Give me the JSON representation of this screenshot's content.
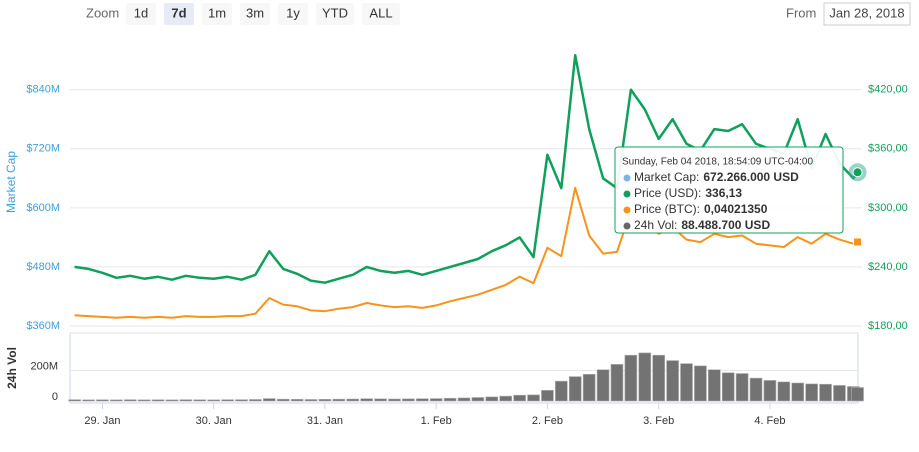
{
  "range_selector": {
    "label": "Zoom",
    "buttons": [
      "1d",
      "7d",
      "1m",
      "3m",
      "1y",
      "YTD",
      "ALL"
    ],
    "selected": 1,
    "from_label": "From",
    "from_value": "Jan 28, 2018"
  },
  "tooltip": {
    "title": "Sunday, Feb 04 2018, 18:54:09 UTC-04:00",
    "items": [
      {
        "name": "Market Cap:",
        "value": "672.266.000 USD",
        "color": "#7cb5ec"
      },
      {
        "name": "Price (USD):",
        "value": "336,13",
        "color": "#11a05c"
      },
      {
        "name": "Price (BTC):",
        "value": "0,04021350",
        "color": "#f7931a"
      },
      {
        "name": "24h Vol:",
        "value": "88.488.700 USD",
        "color": "#666666"
      }
    ]
  },
  "chart_data": [
    {
      "type": "line",
      "y_label": "Market Cap",
      "grid": true,
      "x": [
        "2018-01-28T18:00",
        "2018-01-28T21:00",
        "2018-01-29T00:00",
        "2018-01-29T03:00",
        "2018-01-29T06:00",
        "2018-01-29T09:00",
        "2018-01-29T12:00",
        "2018-01-29T15:00",
        "2018-01-29T18:00",
        "2018-01-29T21:00",
        "2018-01-30T00:00",
        "2018-01-30T03:00",
        "2018-01-30T06:00",
        "2018-01-30T09:00",
        "2018-01-30T12:00",
        "2018-01-30T15:00",
        "2018-01-30T18:00",
        "2018-01-30T21:00",
        "2018-01-31T00:00",
        "2018-01-31T03:00",
        "2018-01-31T06:00",
        "2018-01-31T09:00",
        "2018-01-31T12:00",
        "2018-01-31T15:00",
        "2018-01-31T18:00",
        "2018-01-31T21:00",
        "2018-02-01T00:00",
        "2018-02-01T03:00",
        "2018-02-01T06:00",
        "2018-02-01T09:00",
        "2018-02-01T12:00",
        "2018-02-01T15:00",
        "2018-02-01T18:00",
        "2018-02-01T21:00",
        "2018-02-02T00:00",
        "2018-02-02T03:00",
        "2018-02-02T06:00",
        "2018-02-02T09:00",
        "2018-02-02T12:00",
        "2018-02-02T15:00",
        "2018-02-02T18:00",
        "2018-02-02T21:00",
        "2018-02-03T00:00",
        "2018-02-03T03:00",
        "2018-02-03T06:00",
        "2018-02-03T09:00",
        "2018-02-03T12:00",
        "2018-02-03T15:00",
        "2018-02-03T18:00",
        "2018-02-03T21:00",
        "2018-02-04T00:00",
        "2018-02-04T03:00",
        "2018-02-04T06:00",
        "2018-02-04T09:00",
        "2018-02-04T12:00",
        "2018-02-04T15:00",
        "2018-02-04T18:00",
        "2018-02-04T18:54:09"
      ],
      "xlim": [
        "2018-01-28T17:00",
        "2018-02-04T19:00"
      ],
      "ylim": [
        360000000,
        945000000
      ],
      "yticks": [
        {
          "value": 360000000,
          "label": "$360M"
        },
        {
          "value": 480000000,
          "label": "$480M"
        },
        {
          "value": 600000000,
          "label": "$600M"
        },
        {
          "value": 720000000,
          "label": "$720M"
        },
        {
          "value": 840000000,
          "label": "$840M"
        }
      ],
      "y2lim": [
        180,
        472.5
      ],
      "y2ticks": [
        {
          "value": 180,
          "label": "$180,00"
        },
        {
          "value": 240,
          "label": "$240,00"
        },
        {
          "value": 300,
          "label": "$300,00"
        },
        {
          "value": 360,
          "label": "$360,00"
        },
        {
          "value": 420,
          "label": "$420,00"
        }
      ],
      "y3lim": [
        0.03,
        0.065
      ],
      "series": [
        {
          "name": "Market Cap",
          "color": "#7cb5ec",
          "axis": "y",
          "values": [
            480000000,
            476000000,
            468000000,
            458000000,
            462000000,
            456000000,
            460000000,
            454000000,
            462000000,
            458000000,
            456000000,
            460000000,
            454000000,
            464000000,
            512000000,
            476000000,
            466000000,
            452000000,
            448000000,
            456000000,
            464000000,
            480000000,
            472000000,
            468000000,
            472000000,
            464000000,
            472000000,
            480000000,
            488000000,
            496000000,
            512000000,
            524000000,
            540000000,
            500000000,
            708000000,
            640000000,
            910000000,
            760000000,
            660000000,
            640000000,
            840000000,
            800000000,
            740000000,
            780000000,
            730000000,
            716000000,
            760000000,
            756000000,
            770000000,
            730000000,
            720000000,
            710000000,
            780000000,
            680000000,
            750000000,
            690000000,
            660000000,
            672266000
          ]
        },
        {
          "name": "Price (USD)",
          "color": "#11a05c",
          "axis": "y2",
          "values": [
            240,
            238,
            234,
            229,
            231,
            228,
            230,
            227,
            231,
            229,
            228,
            230,
            227,
            232,
            256,
            238,
            233,
            226,
            224,
            228,
            232,
            240,
            236,
            234,
            236,
            232,
            236,
            240,
            244,
            248,
            256,
            262,
            270,
            250,
            354,
            320,
            455,
            380,
            330,
            320,
            420,
            400,
            370,
            390,
            365,
            358,
            380,
            378,
            385,
            365,
            360,
            355,
            390,
            340,
            375,
            345,
            330,
            336.13
          ]
        },
        {
          "name": "Price (BTC)",
          "color": "#f7931a",
          "axis": "y3",
          "values": [
            0.0313,
            0.0312,
            0.0311,
            0.031,
            0.0311,
            0.031,
            0.0311,
            0.031,
            0.0312,
            0.0311,
            0.0311,
            0.0312,
            0.0312,
            0.0315,
            0.0334,
            0.0326,
            0.0324,
            0.0319,
            0.0318,
            0.0321,
            0.0323,
            0.0328,
            0.0325,
            0.0323,
            0.0324,
            0.0322,
            0.0325,
            0.033,
            0.0334,
            0.0338,
            0.0344,
            0.035,
            0.036,
            0.0352,
            0.0395,
            0.0385,
            0.0468,
            0.041,
            0.0388,
            0.039,
            0.044,
            0.0425,
            0.0412,
            0.042,
            0.0405,
            0.0402,
            0.0412,
            0.0408,
            0.041,
            0.04,
            0.0398,
            0.0396,
            0.0408,
            0.04,
            0.0412,
            0.0405,
            0.04,
            0.0402135
          ]
        }
      ]
    },
    {
      "type": "bar",
      "y_label": "24h Vol",
      "grid": true,
      "x": [
        "2018-01-28T18:00",
        "2018-01-28T21:00",
        "2018-01-29T00:00",
        "2018-01-29T03:00",
        "2018-01-29T06:00",
        "2018-01-29T09:00",
        "2018-01-29T12:00",
        "2018-01-29T15:00",
        "2018-01-29T18:00",
        "2018-01-29T21:00",
        "2018-01-30T00:00",
        "2018-01-30T03:00",
        "2018-01-30T06:00",
        "2018-01-30T09:00",
        "2018-01-30T12:00",
        "2018-01-30T15:00",
        "2018-01-30T18:00",
        "2018-01-30T21:00",
        "2018-01-31T00:00",
        "2018-01-31T03:00",
        "2018-01-31T06:00",
        "2018-01-31T09:00",
        "2018-01-31T12:00",
        "2018-01-31T15:00",
        "2018-01-31T18:00",
        "2018-01-31T21:00",
        "2018-02-01T00:00",
        "2018-02-01T03:00",
        "2018-02-01T06:00",
        "2018-02-01T09:00",
        "2018-02-01T12:00",
        "2018-02-01T15:00",
        "2018-02-01T18:00",
        "2018-02-01T21:00",
        "2018-02-02T00:00",
        "2018-02-02T03:00",
        "2018-02-02T06:00",
        "2018-02-02T09:00",
        "2018-02-02T12:00",
        "2018-02-02T15:00",
        "2018-02-02T18:00",
        "2018-02-02T21:00",
        "2018-02-03T00:00",
        "2018-02-03T03:00",
        "2018-02-03T06:00",
        "2018-02-03T09:00",
        "2018-02-03T12:00",
        "2018-02-03T15:00",
        "2018-02-03T18:00",
        "2018-02-03T21:00",
        "2018-02-04T00:00",
        "2018-02-04T03:00",
        "2018-02-04T06:00",
        "2018-02-04T09:00",
        "2018-02-04T12:00",
        "2018-02-04T15:00",
        "2018-02-04T18:00",
        "2018-02-04T18:54:09"
      ],
      "xlim": [
        "2018-01-28T17:00",
        "2018-02-04T19:00"
      ],
      "xticks": [
        {
          "value": "2018-01-29T00:00",
          "label": "29. Jan"
        },
        {
          "value": "2018-01-30T00:00",
          "label": "30. Jan"
        },
        {
          "value": "2018-01-31T00:00",
          "label": "31. Jan"
        },
        {
          "value": "2018-02-01T00:00",
          "label": "1. Feb"
        },
        {
          "value": "2018-02-02T00:00",
          "label": "2. Feb"
        },
        {
          "value": "2018-02-03T00:00",
          "label": "3. Feb"
        },
        {
          "value": "2018-02-04T00:00",
          "label": "4. Feb"
        }
      ],
      "ylim": [
        0,
        380000000
      ],
      "yticks": [
        0,
        {
          "value": 200000000,
          "label": "200M"
        }
      ],
      "series": [
        {
          "name": "24h Vol",
          "color": "#737373",
          "values": [
            9000000,
            8000000,
            8500000,
            8000000,
            9000000,
            8000000,
            8500000,
            8000000,
            9000000,
            8500000,
            8000000,
            9000000,
            9000000,
            10000000,
            16000000,
            12000000,
            11000000,
            10000000,
            11000000,
            12000000,
            13000000,
            15000000,
            14000000,
            13000000,
            14000000,
            15000000,
            16000000,
            18000000,
            20000000,
            23000000,
            27000000,
            32000000,
            38000000,
            40000000,
            70000000,
            130000000,
            160000000,
            175000000,
            205000000,
            240000000,
            300000000,
            315000000,
            300000000,
            265000000,
            245000000,
            230000000,
            205000000,
            185000000,
            180000000,
            150000000,
            135000000,
            125000000,
            118000000,
            112000000,
            110000000,
            102000000,
            95000000,
            88488700
          ]
        }
      ]
    }
  ]
}
